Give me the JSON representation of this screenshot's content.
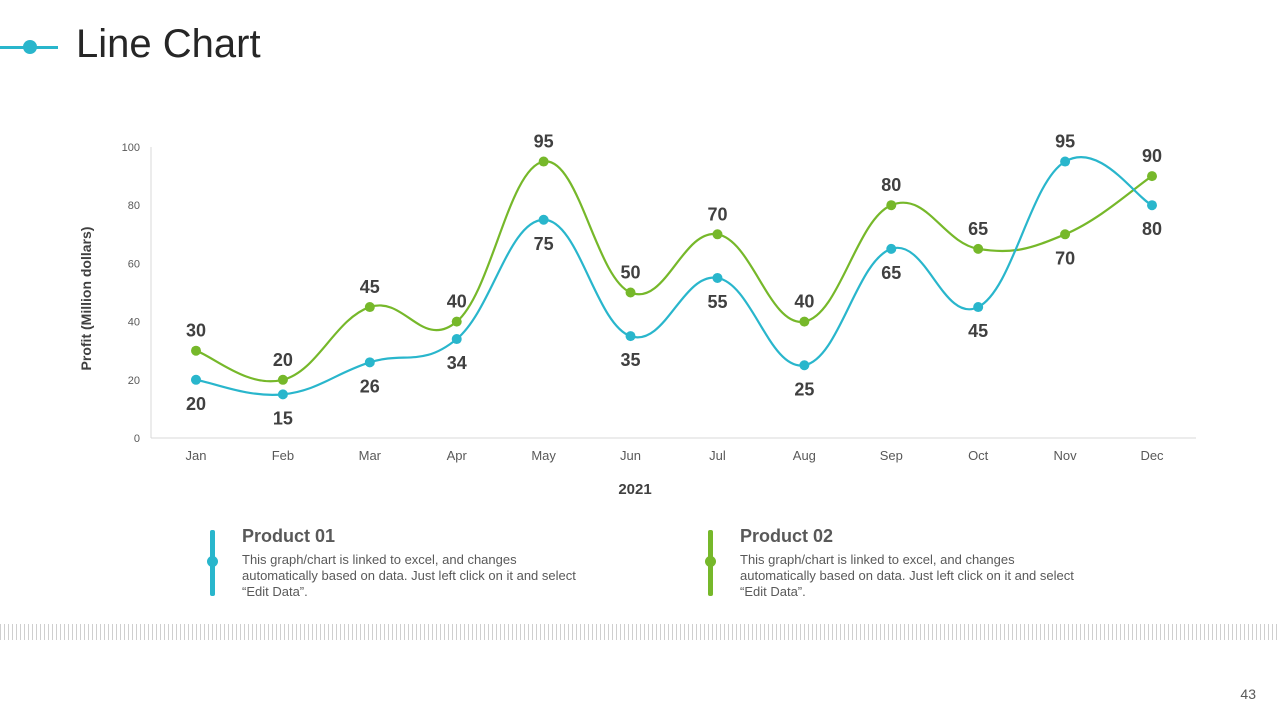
{
  "slide": {
    "title": "Line Chart",
    "page_number": "43"
  },
  "colors": {
    "product01": "#29b6cc",
    "product02": "#76b82a",
    "accent": "#29b6cc"
  },
  "legend": [
    {
      "title": "Product 01",
      "description": "This graph/chart is linked to excel, and changes automatically based on data. Just left click on it and select “Edit Data”."
    },
    {
      "title": "Product 02",
      "description": "This graph/chart is linked to excel, and changes automatically based on data. Just left click on it and select “Edit Data”."
    }
  ],
  "chart_data": {
    "type": "line",
    "title": "",
    "xlabel": "2021",
    "ylabel": "Profit  (Million dollars)",
    "categories": [
      "Jan",
      "Feb",
      "Mar",
      "Apr",
      "May",
      "Jun",
      "Jul",
      "Aug",
      "Sep",
      "Oct",
      "Nov",
      "Dec"
    ],
    "ylim": [
      0,
      100
    ],
    "yticks": [
      0,
      20,
      40,
      60,
      80,
      100
    ],
    "smooth": true,
    "series": [
      {
        "name": "Product 01",
        "color": "#29b6cc",
        "values": [
          20,
          15,
          26,
          34,
          75,
          35,
          55,
          25,
          65,
          45,
          95,
          80
        ]
      },
      {
        "name": "Product 02",
        "color": "#76b82a",
        "values": [
          30,
          20,
          45,
          40,
          95,
          50,
          70,
          40,
          80,
          65,
          70,
          90
        ]
      }
    ]
  }
}
